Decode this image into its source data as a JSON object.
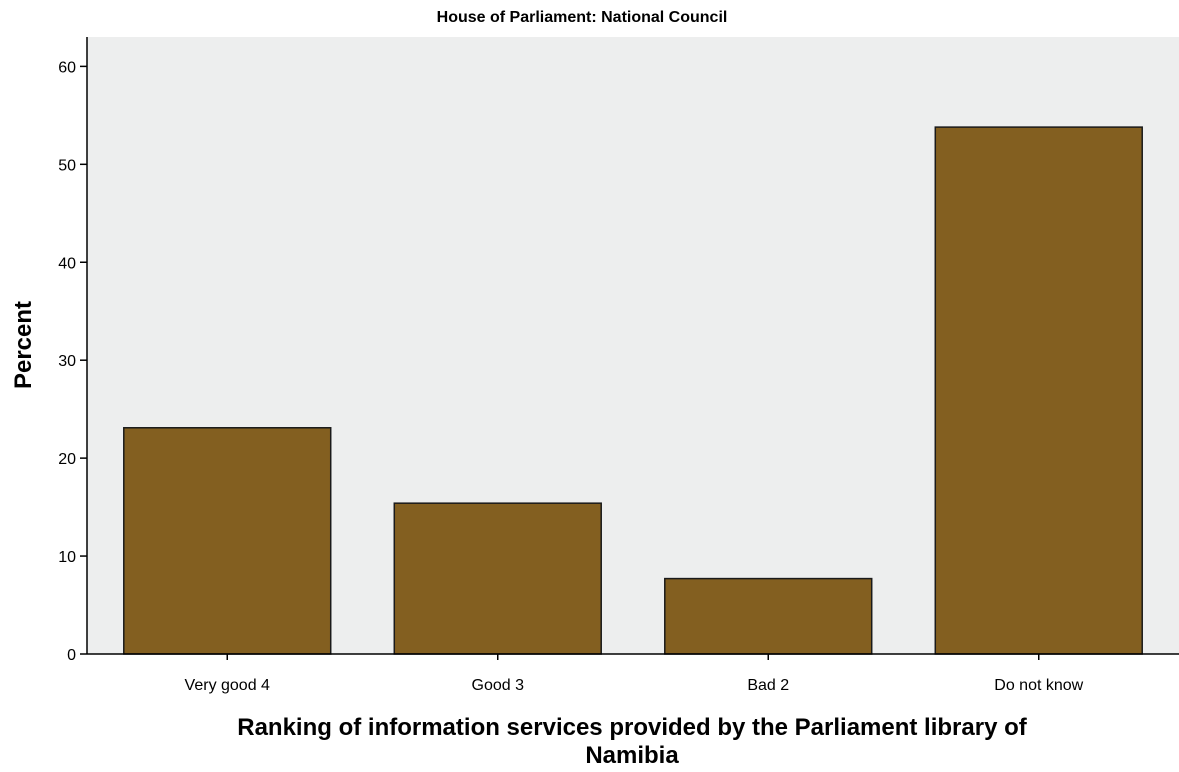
{
  "chart_data": {
    "type": "bar",
    "title": "House of Parliament: National Council",
    "categories": [
      "Very good 4",
      "Good 3",
      "Bad 2",
      "Do not know"
    ],
    "values": [
      23.1,
      15.4,
      7.7,
      53.8
    ],
    "ylabel": "Percent",
    "xlabel_lines": [
      "Ranking of information services provided by the Parliament library of",
      "Namibia"
    ],
    "yticks": [
      0,
      10,
      20,
      30,
      40,
      50,
      60
    ],
    "ylim": [
      0,
      63
    ],
    "grid": false,
    "colors": {
      "bar": "#835F20",
      "bar_edge": "#1a1a1a",
      "plot_background": "#EDEEEE",
      "axis": "#000000"
    }
  }
}
